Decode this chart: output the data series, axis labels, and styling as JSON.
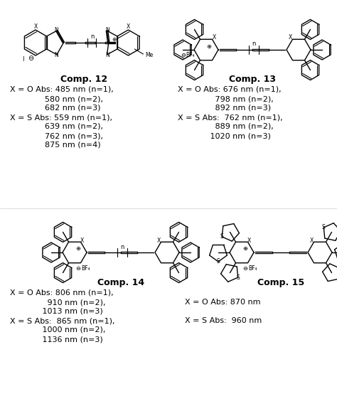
{
  "background_color": "#ffffff",
  "text_color": "#000000",
  "comp12_label": "Comp. 12",
  "comp13_label": "Comp. 13",
  "comp14_label": "Comp. 14",
  "comp15_label": "Comp. 15",
  "comp12_lines": [
    "X = O Abs: 485 nm (n=1),",
    "              580 nm (n=2),",
    "              682 nm (n=3)",
    "X = S Abs: 559 nm (n=1),",
    "              639 nm (n=2),",
    "              762 nm (n=3),",
    "              875 nm (n=4)"
  ],
  "comp13_lines": [
    "X = O Abs: 676 nm (n=1),",
    "               798 nm (n=2),",
    "               892 nm (n=3)",
    "X = S Abs:  762 nm (n=1),",
    "               889 nm (n=2),",
    "             1020 nm (n=3)"
  ],
  "comp14_lines": [
    "X = O Abs: 806 nm (n=1),",
    "               910 nm (n=2),",
    "             1013 nm (n=3)",
    "X = S Abs:  865 nm (n=1),",
    "             1000 nm (n=2),",
    "             1136 nm (n=3)"
  ],
  "comp15_lines": [
    "X = O Abs: 870 nm",
    "",
    "X = S Abs:  960 nm"
  ],
  "font_size_text": 8.0,
  "font_size_label": 9.0,
  "font_size_struct": 6.5
}
